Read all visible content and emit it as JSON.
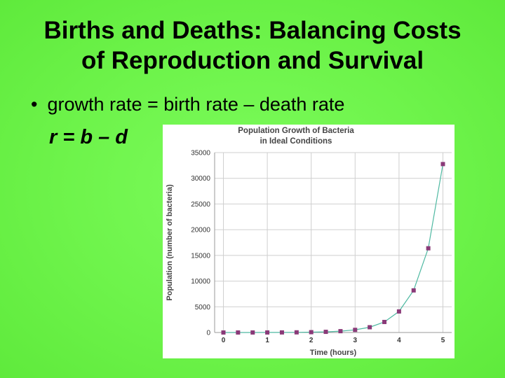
{
  "slide": {
    "title_line1": "Births and Deaths: Balancing Costs",
    "title_line2": "of Reproduction and Survival",
    "bullet_mark": "•",
    "bullet_text": "growth rate = birth rate – death rate",
    "equation": "r = b – d"
  },
  "chart_data": {
    "type": "line",
    "title_lines": [
      "Population Growth of Bacteria",
      "in Ideal Conditions"
    ],
    "xlabel": "Time (hours)",
    "ylabel": "Population (number of bacteria)",
    "xlim": [
      -0.2,
      5.2
    ],
    "ylim": [
      0,
      35000
    ],
    "xticks": [
      0,
      1,
      2,
      3,
      4,
      5
    ],
    "yticks": [
      0,
      5000,
      10000,
      15000,
      20000,
      25000,
      30000,
      35000
    ],
    "grid": true,
    "series": [
      {
        "x": [
          0,
          0.333,
          0.667,
          1,
          1.333,
          1.667,
          2,
          2.333,
          2.667,
          3,
          3.333,
          3.667,
          4,
          4.333,
          4.667,
          5
        ],
        "values": [
          1,
          2,
          4,
          8,
          16,
          32,
          64,
          128,
          256,
          512,
          1024,
          2048,
          4096,
          8192,
          16384,
          32768
        ],
        "line_color": "#4fb9a2",
        "marker_color": "#8a3a78"
      }
    ]
  }
}
